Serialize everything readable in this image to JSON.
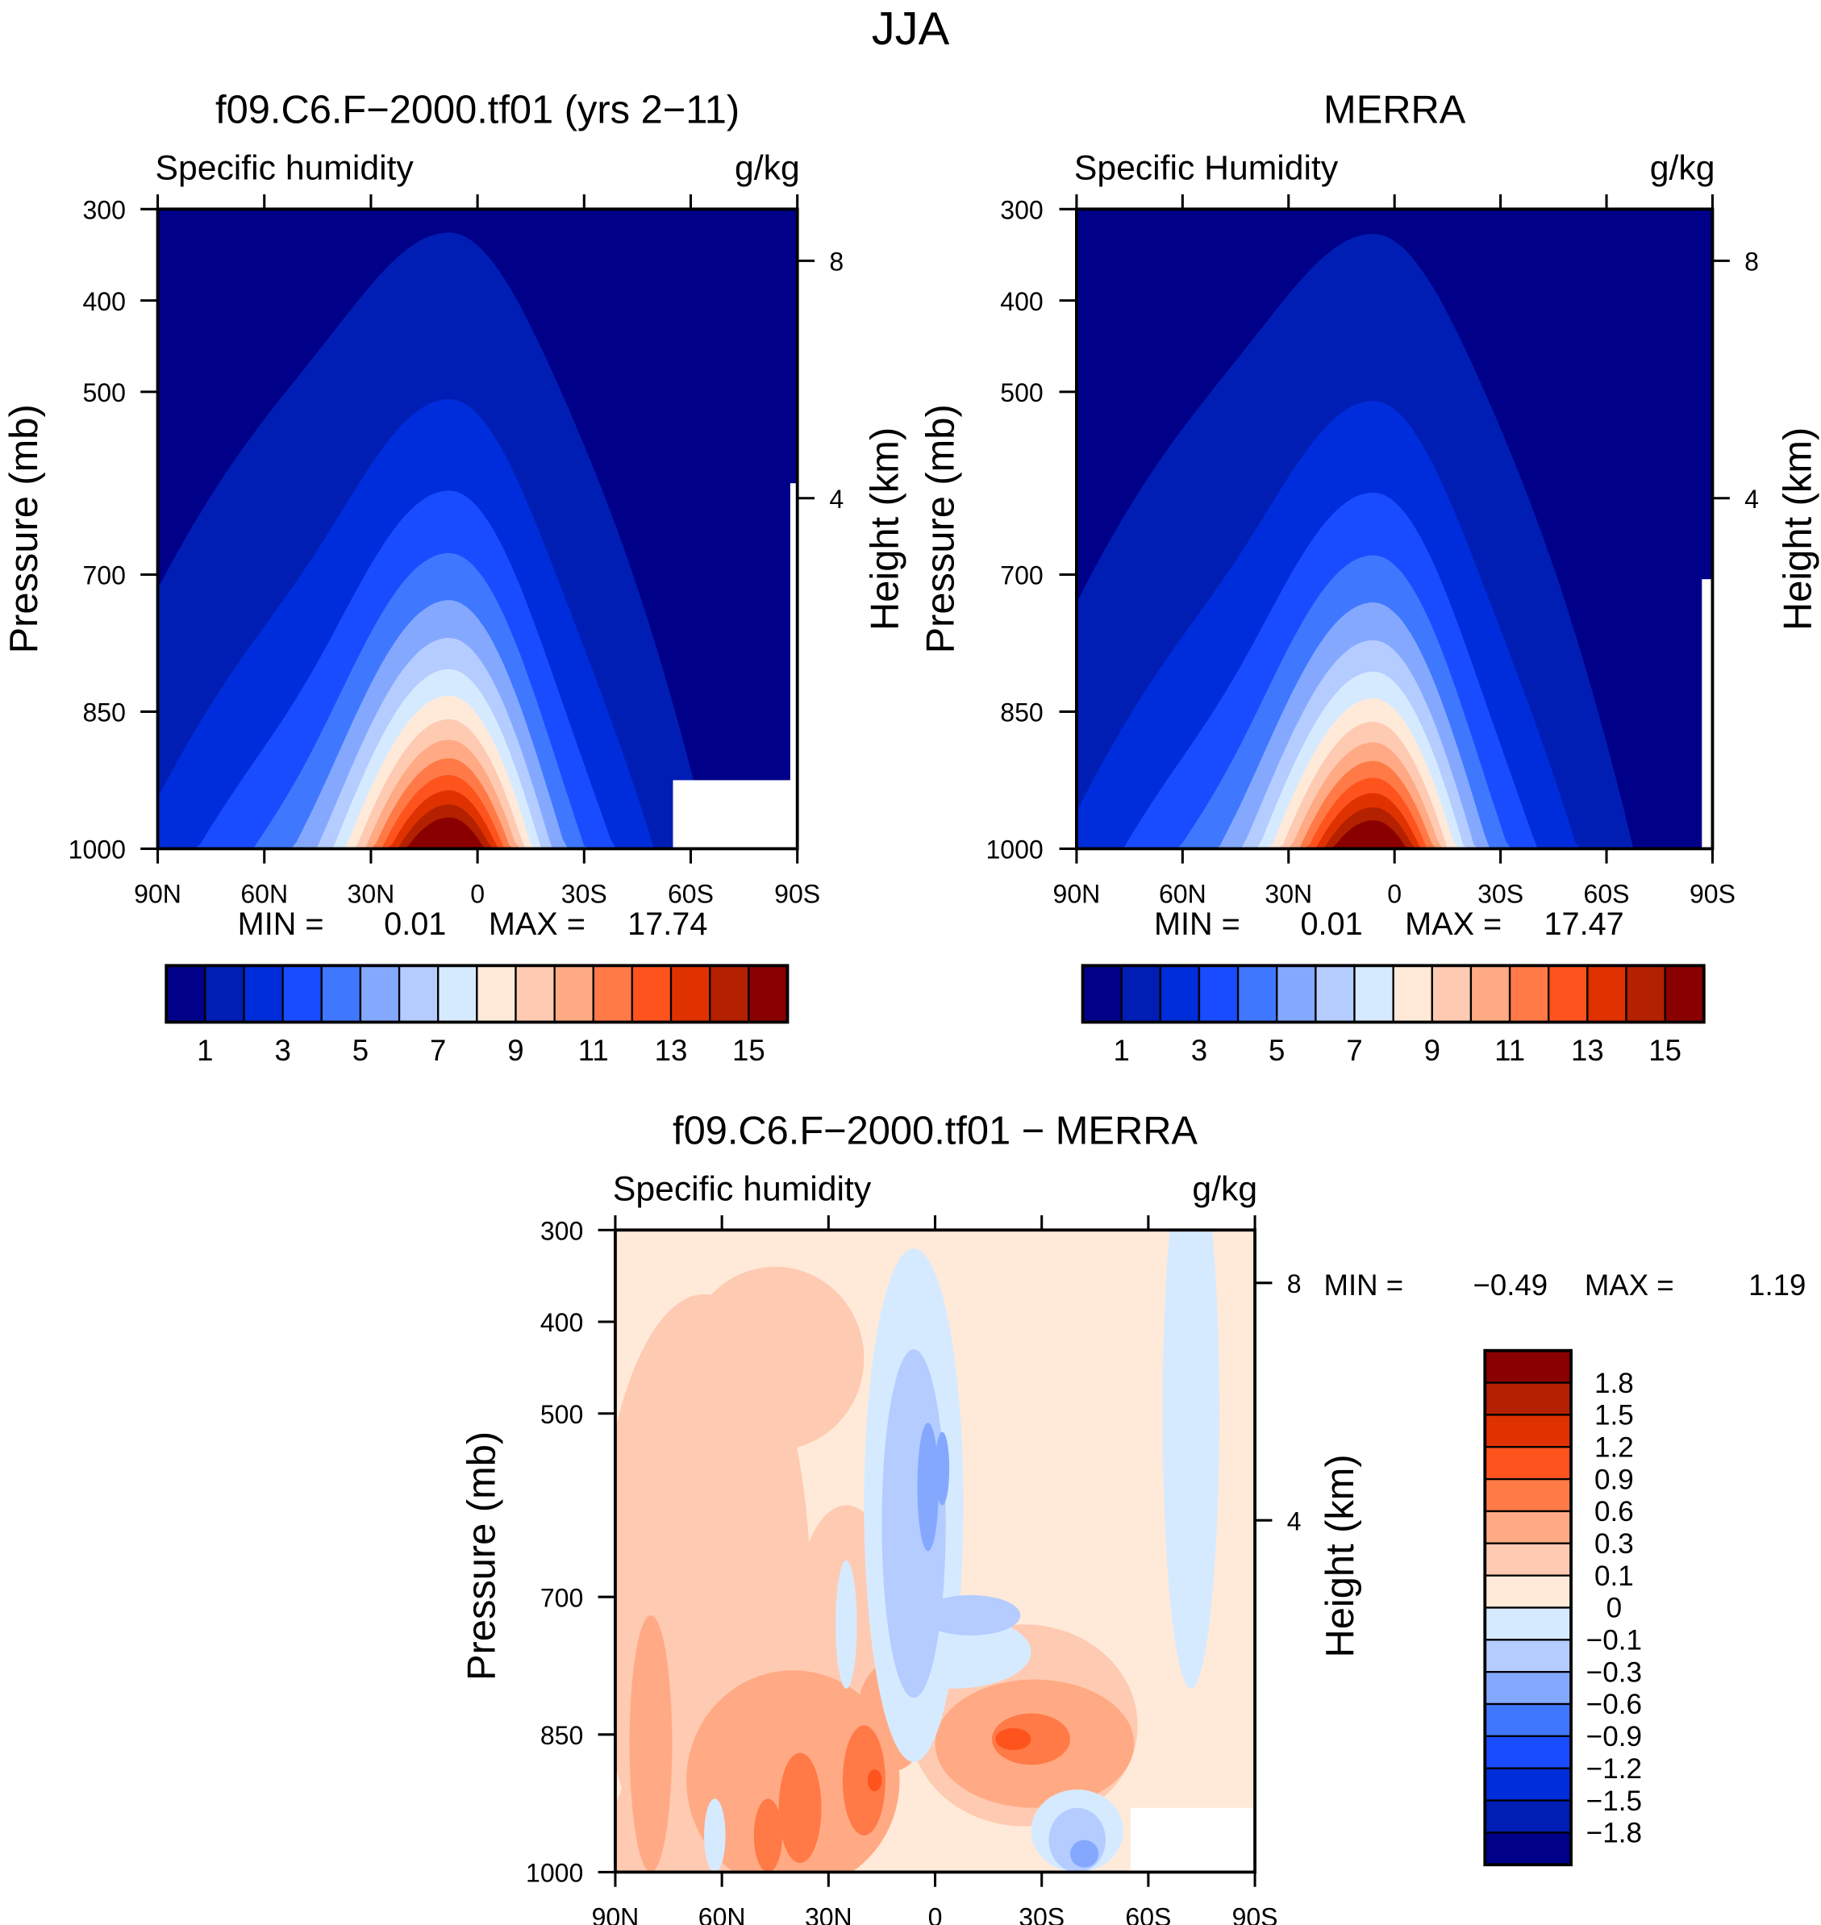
{
  "figure_title": "JJA",
  "colors": {
    "absolute_levels": [
      "#000088",
      "#001eb4",
      "#002ddc",
      "#1a4cff",
      "#3f78ff",
      "#85a8ff",
      "#b4ccff",
      "#d6eaff",
      "#ffead9",
      "#ffcab2",
      "#ffaa84",
      "#ff7a46",
      "#ff531e",
      "#e03200",
      "#b32100",
      "#8a0000"
    ],
    "missing": "#ffffff"
  },
  "chart_data": [
    {
      "type": "heatmap",
      "title": "f09.C6.F-2000.tf01 (yrs 2-11)",
      "left_string": "Specific humidity",
      "right_string": "g/kg",
      "xlabel": "",
      "ylabel": "Pressure (mb)",
      "y2label": "Height (km)",
      "x_ticks": [
        "90N",
        "60N",
        "30N",
        "0",
        "30S",
        "60S",
        "90S"
      ],
      "y_ticks": [
        "300",
        "400",
        "500",
        "700",
        "850",
        "1000"
      ],
      "y2_ticks": [
        "8",
        "4"
      ],
      "xlim": [
        90,
        -90
      ],
      "ylim": [
        300,
        1000
      ],
      "min_label": "MIN =",
      "min_value": "0.01",
      "max_label": "MAX =",
      "max_value": "17.74",
      "levels": [
        "1",
        "2",
        "3",
        "4",
        "5",
        "6",
        "7",
        "8",
        "9",
        "10",
        "11",
        "12",
        "13",
        "14",
        "15"
      ],
      "colorbar_labels": [
        "1",
        "3",
        "5",
        "7",
        "9",
        "11",
        "13",
        "15"
      ],
      "peak": {
        "lat": 8,
        "value": 17.74
      }
    },
    {
      "type": "heatmap",
      "title": "MERRA",
      "left_string": "Specific Humidity",
      "right_string": "g/kg",
      "xlabel": "",
      "ylabel": "Pressure (mb)",
      "y2label": "Height (km)",
      "x_ticks": [
        "90N",
        "60N",
        "30N",
        "0",
        "30S",
        "60S",
        "90S"
      ],
      "y_ticks": [
        "300",
        "400",
        "500",
        "700",
        "850",
        "1000"
      ],
      "y2_ticks": [
        "8",
        "4"
      ],
      "xlim": [
        90,
        -90
      ],
      "ylim": [
        300,
        1000
      ],
      "min_label": "MIN =",
      "min_value": "0.01",
      "max_label": "MAX =",
      "max_value": "17.47",
      "levels": [
        "1",
        "2",
        "3",
        "4",
        "5",
        "6",
        "7",
        "8",
        "9",
        "10",
        "11",
        "12",
        "13",
        "14",
        "15"
      ],
      "colorbar_labels": [
        "1",
        "3",
        "5",
        "7",
        "9",
        "11",
        "13",
        "15"
      ],
      "peak": {
        "lat": 6,
        "value": 17.47
      }
    },
    {
      "type": "heatmap",
      "title": "f09.C6.F-2000.tf01 - MERRA",
      "left_string": "Specific humidity",
      "right_string": "g/kg",
      "xlabel": "",
      "ylabel": "Pressure (mb)",
      "y2label": "Height (km)",
      "x_ticks": [
        "90N",
        "60N",
        "30N",
        "0",
        "30S",
        "60S",
        "90S"
      ],
      "y_ticks": [
        "300",
        "400",
        "500",
        "700",
        "850",
        "1000"
      ],
      "y2_ticks": [
        "8",
        "4"
      ],
      "xlim": [
        90,
        -90
      ],
      "ylim": [
        300,
        1000
      ],
      "min_label": "MIN =",
      "min_value": "-0.49",
      "max_label": "MAX =",
      "max_value": "1.19",
      "levels": [
        "-1.8",
        "-1.5",
        "-1.2",
        "-0.9",
        "-0.6",
        "-0.3",
        "-0.1",
        "0",
        "0.1",
        "0.3",
        "0.6",
        "0.9",
        "1.2",
        "1.5",
        "1.8"
      ],
      "colorbar_labels": [
        "1.8",
        "1.5",
        "1.2",
        "0.9",
        "0.6",
        "0.3",
        "0.1",
        "0",
        "-0.1",
        "-0.3",
        "-0.6",
        "-0.9",
        "-1.2",
        "-1.5",
        "-1.8"
      ]
    }
  ]
}
